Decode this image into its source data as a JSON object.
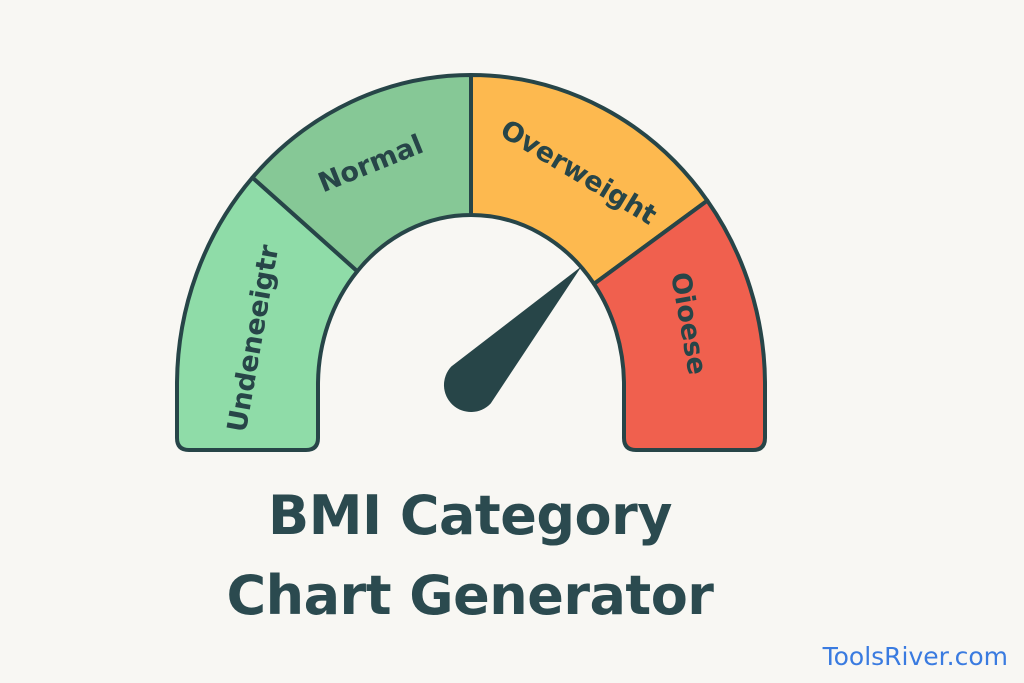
{
  "colors": {
    "background": "#f8f7f3",
    "outline": "#274548",
    "underweight": "#8fdca8",
    "normal": "#86c896",
    "overweight": "#fdb94f",
    "obese": "#f0604e",
    "title": "#2b4a4f",
    "brand": "#3a7be0"
  },
  "gauge": {
    "segments": [
      {
        "label": "Undeneeigtr"
      },
      {
        "label": "Normal"
      },
      {
        "label": "Overweight"
      },
      {
        "label": "Oioese"
      }
    ],
    "needle_level_fraction": 0.74
  },
  "title": {
    "line1": "BMI Category",
    "line2": "Chart Generator"
  },
  "brand": "ToolsRiver.com"
}
